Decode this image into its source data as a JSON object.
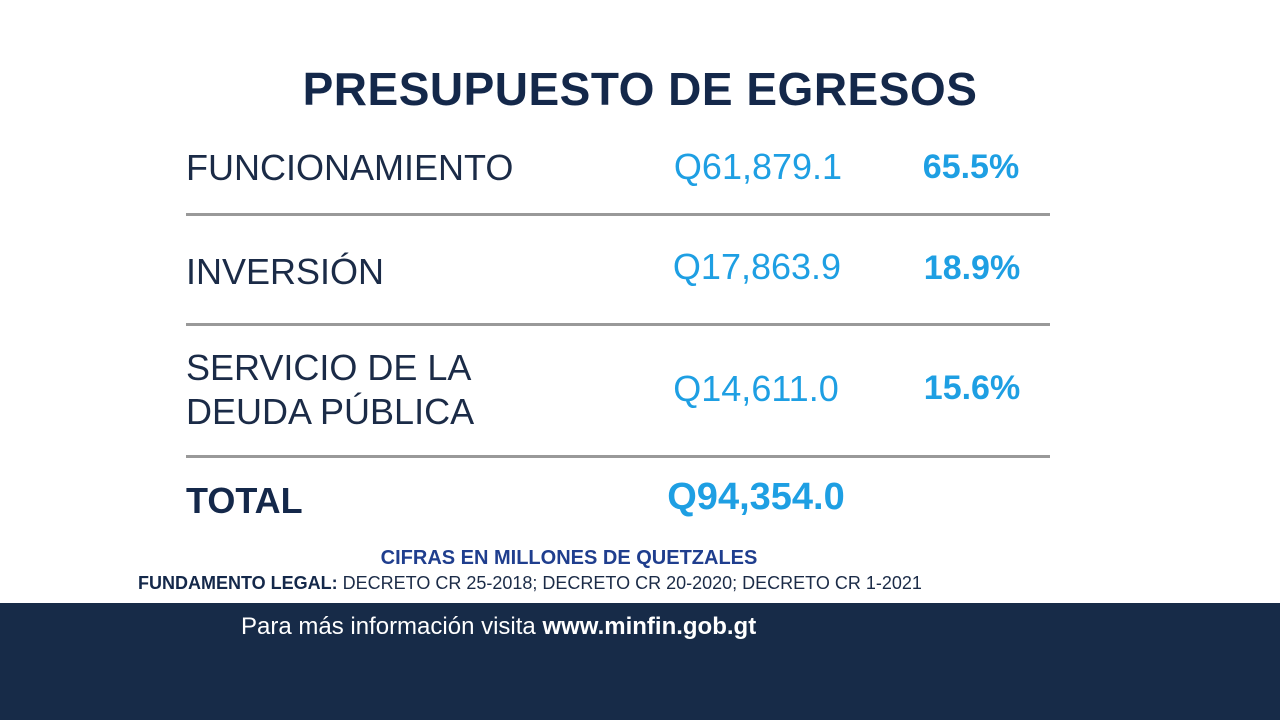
{
  "title": "PRESUPUESTO DE EGRESOS",
  "rows": [
    {
      "label_line1": "FUNCIONAMIENTO",
      "label_line2": "",
      "amount": "Q61,879.1",
      "percent": "65.5%"
    },
    {
      "label_line1": "INVERSIÓN",
      "label_line2": "",
      "amount": "Q17,863.9",
      "percent": "18.9%"
    },
    {
      "label_line1": "SERVICIO DE LA",
      "label_line2": "DEUDA PÚBLICA",
      "amount": "Q14,611.0",
      "percent": "15.6%"
    }
  ],
  "total": {
    "label": "TOTAL",
    "amount": "Q94,354.0"
  },
  "note": "CIFRAS EN MILLONES DE QUETZALES",
  "legal": {
    "label": "FUNDAMENTO LEGAL:",
    "text": " DECRETO CR 25-2018; DECRETO CR 20-2020; DECRETO CR 1-2021"
  },
  "footer": {
    "text": "Para más información visita ",
    "url": "www.minfin.gob.gt"
  },
  "colors": {
    "navy": "#14284a",
    "accent": "#1e9fe3",
    "footer_bg": "#172b48",
    "divider": "#999999"
  }
}
